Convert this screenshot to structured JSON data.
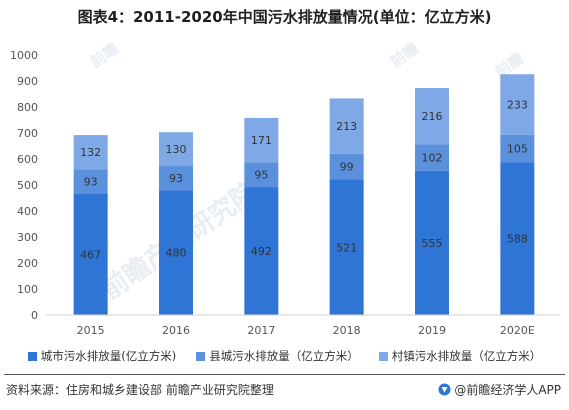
{
  "chart_data": {
    "type": "bar",
    "stacked": true,
    "title": "图表4：2011-2020年中国污水排放量情况(单位：亿立方米)",
    "categories": [
      "2015",
      "2016",
      "2017",
      "2018",
      "2019",
      "2020E"
    ],
    "series": [
      {
        "name": "城市污水排放量(亿立方米)",
        "values": [
          467,
          480,
          492,
          521,
          555,
          588
        ],
        "color": "#2e75d6"
      },
      {
        "name": "县城污水排放量（亿立方米）",
        "values": [
          93,
          93,
          95,
          99,
          102,
          105
        ],
        "color": "#5b91dc"
      },
      {
        "name": "村镇污水排放量（亿立方米）",
        "values": [
          132,
          130,
          171,
          213,
          216,
          233
        ],
        "color": "#7ea9e6"
      }
    ],
    "yticks": [
      "0",
      "100",
      "200",
      "300",
      "400",
      "500",
      "600",
      "700",
      "800",
      "900",
      "1000"
    ],
    "ylim": [
      0,
      1000
    ],
    "grid": false,
    "legend_position": "bottom"
  },
  "footer": {
    "source": "资料来源：住房和城乡建设部 前瞻产业研究院整理",
    "brand": "@前瞻经济学人APP"
  },
  "watermark": {
    "text": "前瞻产业研究院",
    "logo": "前瞻"
  }
}
